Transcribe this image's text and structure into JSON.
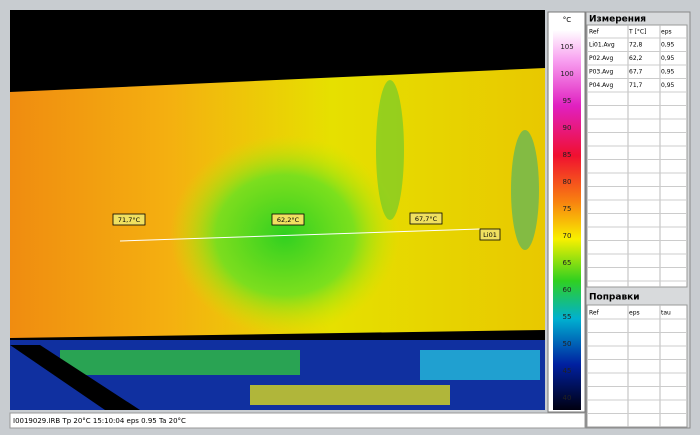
{
  "scale": {
    "unit": "°C",
    "ticks": [
      105,
      100,
      95,
      90,
      85,
      80,
      75,
      70,
      65,
      60,
      55,
      50,
      45,
      40
    ]
  },
  "measurements": {
    "title": "Измерения",
    "columns": [
      "Ref",
      "T [°C]",
      "eps"
    ],
    "rows": [
      [
        "Li01.Avg",
        "72,8",
        "0,95"
      ],
      [
        "P02.Avg",
        "62,2",
        "0,95"
      ],
      [
        "P03.Avg",
        "67,7",
        "0,95"
      ],
      [
        "P04.Avg",
        "71,7",
        "0,95"
      ]
    ]
  },
  "corrections": {
    "title": "Поправки",
    "columns": [
      "Ref",
      "eps",
      "tau"
    ]
  },
  "image_labels": [
    "71,7°C",
    "62,2°C",
    "67,7°C",
    "Li01"
  ],
  "status": "I0019029.IRB  Tp 20°C  15:10:04  eps 0.95  Ta 20°C"
}
